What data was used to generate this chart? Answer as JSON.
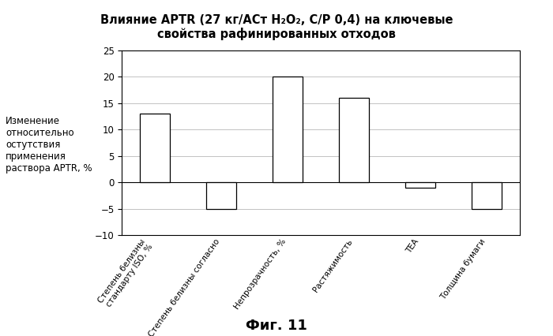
{
  "title": "Влияние APTR (27 кг/АСт H₂O₂, C/P 0,4) на ключевые\nсвойства рафинированных отходов",
  "ylabel": "Изменение\nотносительно\nостутствия\nприменения\nраствора APTR, %",
  "categories": [
    "Степень белизны\nстандарту ISO, %",
    "Степень белизны согласно",
    "Непрозрачность, %",
    "Растяжимость",
    "ТЕА",
    "Толщина бумаги"
  ],
  "values": [
    13,
    -5,
    20,
    16,
    -1,
    -5
  ],
  "bar_color": "#ffffff",
  "bar_edgecolor": "#000000",
  "ylim": [
    -10,
    25
  ],
  "yticks": [
    -10,
    -5,
    0,
    5,
    10,
    15,
    20,
    25
  ],
  "background_color": "#ffffff",
  "caption": "Фиг. 11",
  "caption_fontsize": 13,
  "title_fontsize": 10.5,
  "ylabel_fontsize": 8.5,
  "tick_label_fontsize": 7.5,
  "bar_width": 0.45
}
